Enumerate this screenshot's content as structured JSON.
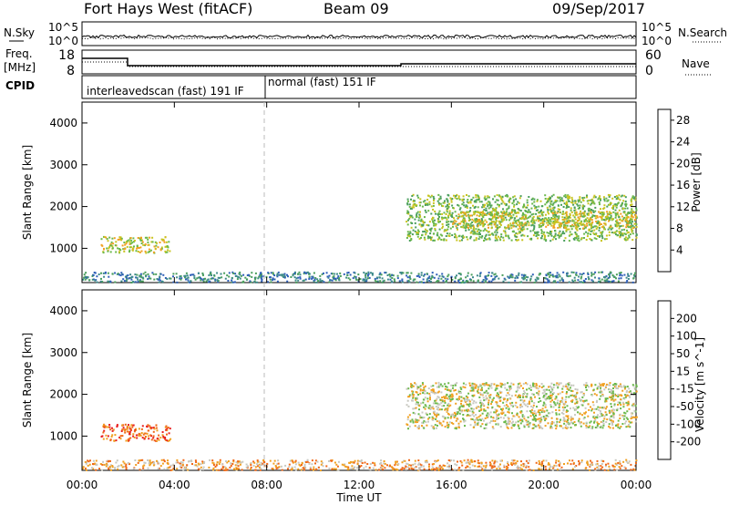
{
  "header": {
    "radar": "Fort Hays West (fitACF)",
    "beam": "Beam 09",
    "date": "09/Sep/2017"
  },
  "top_panels": {
    "nsky_label": "N.Sky",
    "nsky_ticks": [
      "10^5",
      "10^0"
    ],
    "nsearch_label": "N.Search",
    "nsearch_ticks": [
      "10^5",
      "10^0"
    ],
    "freq_label_1": "Freq.",
    "freq_label_2": "[MHz]",
    "freq_ticks": [
      "18",
      "8"
    ],
    "nave_label": "Nave",
    "nave_ticks": [
      "60",
      "0"
    ],
    "cpid_label": "CPID",
    "cpid_segment_1": "interleavedscan (fast) 191 IF",
    "cpid_segment_2": "normal (fast) 151 IF"
  },
  "chart_data": [
    {
      "type": "heatmap",
      "title": "",
      "ylabel": "Slant Range [km]",
      "xlabel": "",
      "ylim": [
        180,
        4500
      ],
      "yticks": [
        "1000",
        "2000",
        "3000",
        "4000"
      ],
      "colorbar": {
        "label": "Power [dB]",
        "range": [
          0,
          30
        ],
        "ticks": [
          "4",
          "8",
          "12",
          "16",
          "20",
          "24",
          "28"
        ],
        "colors": [
          "#1a2bd6",
          "#2e5fb8",
          "#3e8a8a",
          "#4a9e5c",
          "#6ab84a",
          "#c8c420",
          "#f0a020",
          "#f06818",
          "#e82020"
        ]
      },
      "regions": [
        {
          "x_hours": [
            0.8,
            3.8
          ],
          "range_km": [
            900,
            1300
          ],
          "power_db": 20
        },
        {
          "x_hours": [
            0,
            24
          ],
          "range_km": [
            200,
            450
          ],
          "power_db": 8
        },
        {
          "x_hours": [
            14,
            24
          ],
          "range_km": [
            1200,
            2300
          ],
          "power_db": 16
        },
        {
          "x_hours": [
            16,
            24
          ],
          "range_km": [
            1500,
            1900
          ],
          "power_db": 20
        }
      ]
    },
    {
      "type": "heatmap",
      "title": "",
      "ylabel": "Slant Range [km]",
      "xlabel": "Time UT",
      "ylim": [
        180,
        4500
      ],
      "yticks": [
        "1000",
        "2000",
        "3000",
        "4000"
      ],
      "xticks": [
        "00:00",
        "04:00",
        "08:00",
        "12:00",
        "16:00",
        "20:00",
        "00:00"
      ],
      "colorbar": {
        "label": "Velocity [m s^-1]",
        "ticks": [
          "200",
          "100",
          "50",
          "15",
          "-15",
          "-50",
          "-100",
          "-200"
        ],
        "colors": [
          "#1a2bd6",
          "#2e5fb8",
          "#3e8a8a",
          "#6ab84a",
          "#c8c8c0",
          "#f0a020",
          "#f06818",
          "#e82020"
        ]
      },
      "regions": [
        {
          "x_hours": [
            0.8,
            3.8
          ],
          "range_km": [
            900,
            1300
          ],
          "velocity_ms": -100
        },
        {
          "x_hours": [
            0,
            24
          ],
          "range_km": [
            200,
            450
          ],
          "velocity_ms": -30
        },
        {
          "x_hours": [
            14,
            24
          ],
          "range_km": [
            1200,
            2300
          ],
          "velocity_ms": 0
        }
      ]
    }
  ]
}
